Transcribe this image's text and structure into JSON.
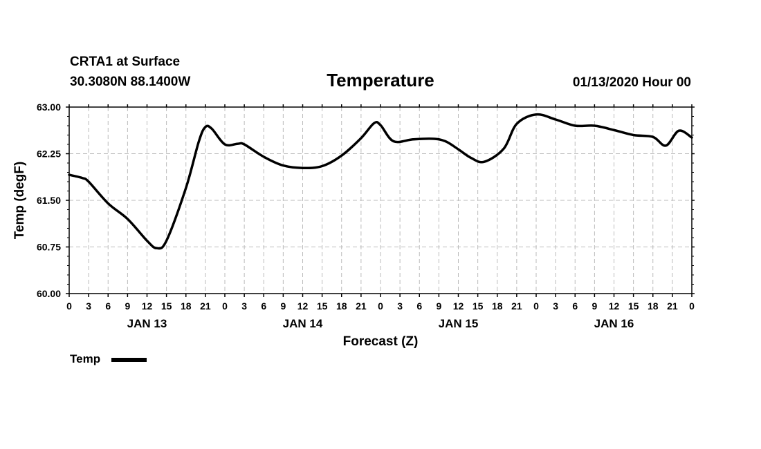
{
  "header": {
    "station": "CRTA1 at Surface",
    "location": "30.3080N 88.1400W",
    "title": "Temperature",
    "datetime": "01/13/2020 Hour 00"
  },
  "chart_data": {
    "type": "line",
    "title": "Temperature",
    "xlabel": "Forecast (Z)",
    "ylabel": "Temp (degF)",
    "ylim": [
      60.0,
      63.0
    ],
    "yticks": [
      "60.00",
      "60.75",
      "61.50",
      "62.25",
      "63.00"
    ],
    "xlim": [
      0,
      96
    ],
    "xtick_hours": [
      0,
      3,
      6,
      9,
      12,
      15,
      18,
      21,
      24,
      27,
      30,
      33,
      36,
      39,
      42,
      45,
      48,
      51,
      54,
      57,
      60,
      63,
      66,
      69,
      72,
      75,
      78,
      81,
      84,
      87,
      90,
      93,
      96
    ],
    "xtick_labels": [
      "0",
      "3",
      "6",
      "9",
      "12",
      "15",
      "18",
      "21",
      "0",
      "3",
      "6",
      "9",
      "12",
      "15",
      "18",
      "21",
      "0",
      "3",
      "6",
      "9",
      "12",
      "15",
      "18",
      "21",
      "0",
      "3",
      "6",
      "9",
      "12",
      "15",
      "18",
      "21",
      "0"
    ],
    "day_labels": [
      {
        "label": "JAN 13",
        "hour": 12
      },
      {
        "label": "JAN 14",
        "hour": 36
      },
      {
        "label": "JAN 15",
        "hour": 60
      },
      {
        "label": "JAN 16",
        "hour": 84
      }
    ],
    "grid": true,
    "legend_position": "bottom-left",
    "series": [
      {
        "name": "Temp",
        "color": "#000000",
        "x": [
          0,
          2,
          3,
          6,
          9,
          12,
          13.5,
          15,
          18,
          20,
          21,
          22,
          24,
          26,
          27,
          30,
          33,
          36,
          39,
          42,
          45,
          47,
          48,
          50,
          53,
          56,
          58,
          60,
          62,
          64,
          67,
          69,
          72,
          75,
          78,
          81,
          84,
          87,
          90,
          92,
          94,
          96
        ],
        "y": [
          61.91,
          61.86,
          61.8,
          61.45,
          61.2,
          60.85,
          60.73,
          60.85,
          61.7,
          62.45,
          62.68,
          62.65,
          62.4,
          62.41,
          62.4,
          62.2,
          62.06,
          62.02,
          62.05,
          62.22,
          62.5,
          62.74,
          62.71,
          62.45,
          62.48,
          62.49,
          62.45,
          62.32,
          62.18,
          62.12,
          62.33,
          62.73,
          62.88,
          62.8,
          62.7,
          62.7,
          62.63,
          62.55,
          62.52,
          62.38,
          62.62,
          62.51
        ]
      }
    ]
  }
}
